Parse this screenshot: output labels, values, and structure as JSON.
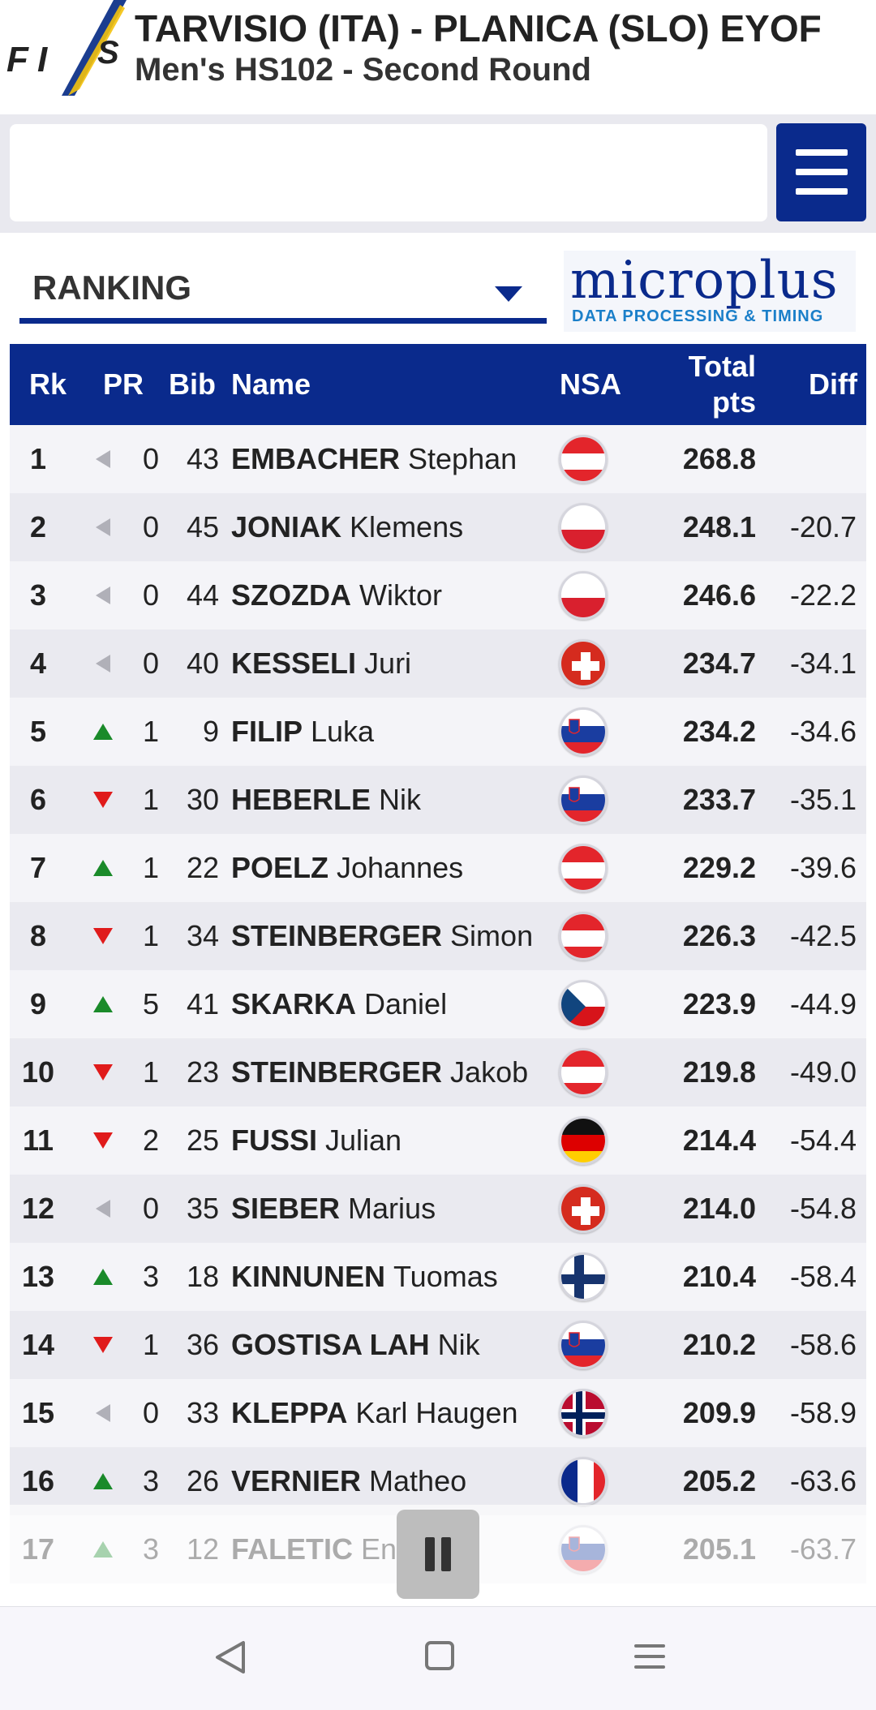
{
  "header": {
    "logo_text": "FIS",
    "title": "TARVISIO (ITA) - PLANICA (SLO) EYOF",
    "subtitle": "Men's HS102 - Second Round"
  },
  "ranking_select": {
    "label": "RANKING"
  },
  "sponsor": {
    "name": "microplus",
    "tagline": "DATA PROCESSING & TIMING"
  },
  "table": {
    "headers": {
      "rk": "Rk",
      "pr": "PR",
      "bib": "Bib",
      "name": "Name",
      "nsa": "NSA",
      "total_1": "Total",
      "total_2": "pts",
      "diff": "Diff"
    },
    "rows": [
      {
        "rk": "1",
        "trend": "same",
        "pr": "0",
        "bib": "43",
        "last": "EMBACHER",
        "first": "Stephan",
        "nsa": "AUT",
        "total": "268.8",
        "diff": ""
      },
      {
        "rk": "2",
        "trend": "same",
        "pr": "0",
        "bib": "45",
        "last": "JONIAK",
        "first": "Klemens",
        "nsa": "POL",
        "total": "248.1",
        "diff": "-20.7"
      },
      {
        "rk": "3",
        "trend": "same",
        "pr": "0",
        "bib": "44",
        "last": "SZOZDA",
        "first": "Wiktor",
        "nsa": "POL",
        "total": "246.6",
        "diff": "-22.2"
      },
      {
        "rk": "4",
        "trend": "same",
        "pr": "0",
        "bib": "40",
        "last": "KESSELI",
        "first": "Juri",
        "nsa": "SUI",
        "total": "234.7",
        "diff": "-34.1"
      },
      {
        "rk": "5",
        "trend": "up",
        "pr": "1",
        "bib": "9",
        "last": "FILIP",
        "first": "Luka",
        "nsa": "SLO",
        "total": "234.2",
        "diff": "-34.6"
      },
      {
        "rk": "6",
        "trend": "down",
        "pr": "1",
        "bib": "30",
        "last": "HEBERLE",
        "first": "Nik",
        "nsa": "SLO",
        "total": "233.7",
        "diff": "-35.1"
      },
      {
        "rk": "7",
        "trend": "up",
        "pr": "1",
        "bib": "22",
        "last": "POELZ",
        "first": "Johannes",
        "nsa": "AUT",
        "total": "229.2",
        "diff": "-39.6"
      },
      {
        "rk": "8",
        "trend": "down",
        "pr": "1",
        "bib": "34",
        "last": "STEINBERGER",
        "first": "Simon",
        "nsa": "AUT",
        "total": "226.3",
        "diff": "-42.5"
      },
      {
        "rk": "9",
        "trend": "up",
        "pr": "5",
        "bib": "41",
        "last": "SKARKA",
        "first": "Daniel",
        "nsa": "CZE",
        "total": "223.9",
        "diff": "-44.9"
      },
      {
        "rk": "10",
        "trend": "down",
        "pr": "1",
        "bib": "23",
        "last": "STEINBERGER",
        "first": "Jakob",
        "nsa": "AUT",
        "total": "219.8",
        "diff": "-49.0"
      },
      {
        "rk": "11",
        "trend": "down",
        "pr": "2",
        "bib": "25",
        "last": "FUSSI",
        "first": "Julian",
        "nsa": "GER",
        "total": "214.4",
        "diff": "-54.4"
      },
      {
        "rk": "12",
        "trend": "same",
        "pr": "0",
        "bib": "35",
        "last": "SIEBER",
        "first": "Marius",
        "nsa": "SUI",
        "total": "214.0",
        "diff": "-54.8"
      },
      {
        "rk": "13",
        "trend": "up",
        "pr": "3",
        "bib": "18",
        "last": "KINNUNEN",
        "first": "Tuomas",
        "nsa": "FIN",
        "total": "210.4",
        "diff": "-58.4"
      },
      {
        "rk": "14",
        "trend": "down",
        "pr": "1",
        "bib": "36",
        "last": "GOSTISA LAH",
        "first": "Nik",
        "nsa": "SLO",
        "total": "210.2",
        "diff": "-58.6"
      },
      {
        "rk": "15",
        "trend": "same",
        "pr": "0",
        "bib": "33",
        "last": "KLEPPA",
        "first": "Karl Haugen",
        "nsa": "NOR",
        "total": "209.9",
        "diff": "-58.9"
      },
      {
        "rk": "16",
        "trend": "up",
        "pr": "3",
        "bib": "26",
        "last": "VERNIER",
        "first": "Matheo",
        "nsa": "FRA",
        "total": "205.2",
        "diff": "-63.6"
      },
      {
        "rk": "17",
        "trend": "up",
        "pr": "3",
        "bib": "12",
        "last": "FALETIC",
        "first": "En",
        "nsa": "SLO",
        "total": "205.1",
        "diff": "-63.7"
      }
    ]
  },
  "colors": {
    "brand_blue": "#0a2a8c",
    "trend_up": "#1a8a2a",
    "trend_down": "#e01b1b",
    "trend_same": "#b0b0b8"
  },
  "icons": {
    "menu": "hamburger-icon",
    "dropdown": "caret-down-icon",
    "pause": "pause-icon",
    "back": "back-icon",
    "home": "home-icon",
    "recents": "menu-lines-icon"
  }
}
